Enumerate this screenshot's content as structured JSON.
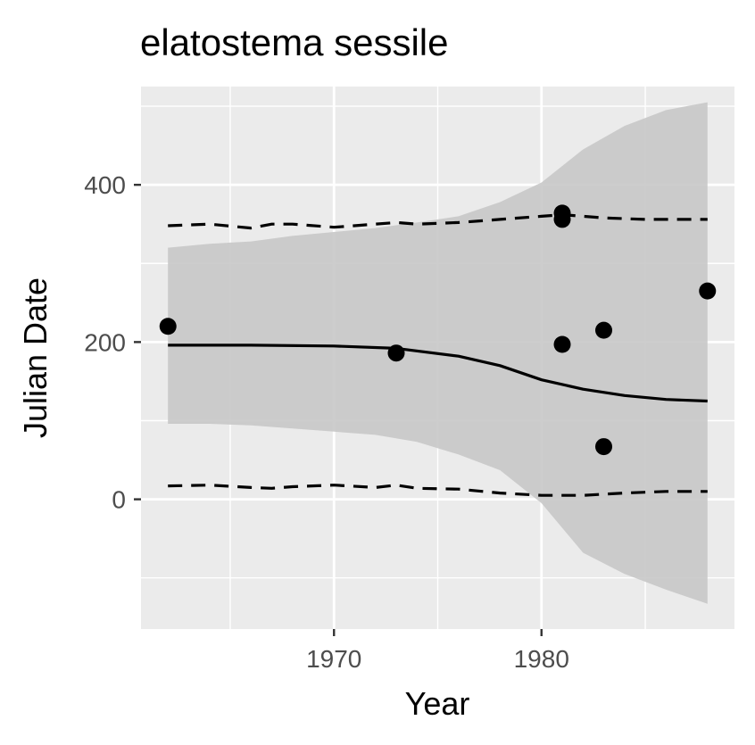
{
  "chart_data": {
    "type": "scatter",
    "title": "elatostema sessile",
    "xlabel": "Year",
    "ylabel": "Julian Date",
    "xlim": [
      1960.7,
      1989.3
    ],
    "ylim": [
      -165,
      525
    ],
    "x_ticks": [
      1970,
      1980
    ],
    "x_tick_labels": [
      "1970",
      "1980"
    ],
    "y_ticks": [
      0,
      200,
      400
    ],
    "y_tick_labels": [
      "0",
      "200",
      "400"
    ],
    "grid": true,
    "legend": "none",
    "colors": {
      "panel": "#ebebeb",
      "grid": "#ffffff",
      "ribbon": "#c8c8c8",
      "points": "#000000",
      "lines": "#000000"
    },
    "points": [
      {
        "x": 1962,
        "y": 220
      },
      {
        "x": 1973,
        "y": 186
      },
      {
        "x": 1981,
        "y": 364
      },
      {
        "x": 1981,
        "y": 356
      },
      {
        "x": 1981,
        "y": 197
      },
      {
        "x": 1983,
        "y": 215
      },
      {
        "x": 1983,
        "y": 67
      },
      {
        "x": 1988,
        "y": 265
      }
    ],
    "fit_line": {
      "x": [
        1962,
        1966,
        1970,
        1973,
        1976,
        1978,
        1980,
        1982,
        1984,
        1986,
        1988
      ],
      "y": [
        196,
        196,
        195,
        192,
        182,
        170,
        152,
        140,
        132,
        127,
        125
      ]
    },
    "ribbon": {
      "x": [
        1962,
        1964,
        1966,
        1968,
        1970,
        1972,
        1974,
        1976,
        1978,
        1980,
        1982,
        1984,
        1986,
        1988
      ],
      "upper": [
        320,
        325,
        328,
        335,
        340,
        345,
        352,
        360,
        378,
        403,
        445,
        475,
        495,
        505
      ],
      "lower": [
        96,
        96,
        94,
        90,
        86,
        82,
        73,
        57,
        37,
        -5,
        -68,
        -95,
        -115,
        -133
      ]
    },
    "upper_quantile_line": {
      "x": [
        1962,
        1964,
        1966,
        1967,
        1968,
        1970,
        1972,
        1973,
        1974,
        1976,
        1978,
        1980,
        1981,
        1983,
        1985,
        1987,
        1988
      ],
      "y": [
        348,
        350,
        345,
        350,
        350,
        346,
        350,
        352,
        350,
        352,
        356,
        360,
        362,
        358,
        356,
        356,
        356
      ]
    },
    "lower_quantile_line": {
      "x": [
        1962,
        1964,
        1966,
        1967,
        1968,
        1970,
        1972,
        1973,
        1974,
        1976,
        1978,
        1980,
        1982,
        1984,
        1986,
        1988
      ],
      "y": [
        17,
        18,
        15,
        14,
        16,
        18,
        15,
        18,
        14,
        13,
        8,
        5,
        5,
        8,
        10,
        10
      ]
    }
  }
}
